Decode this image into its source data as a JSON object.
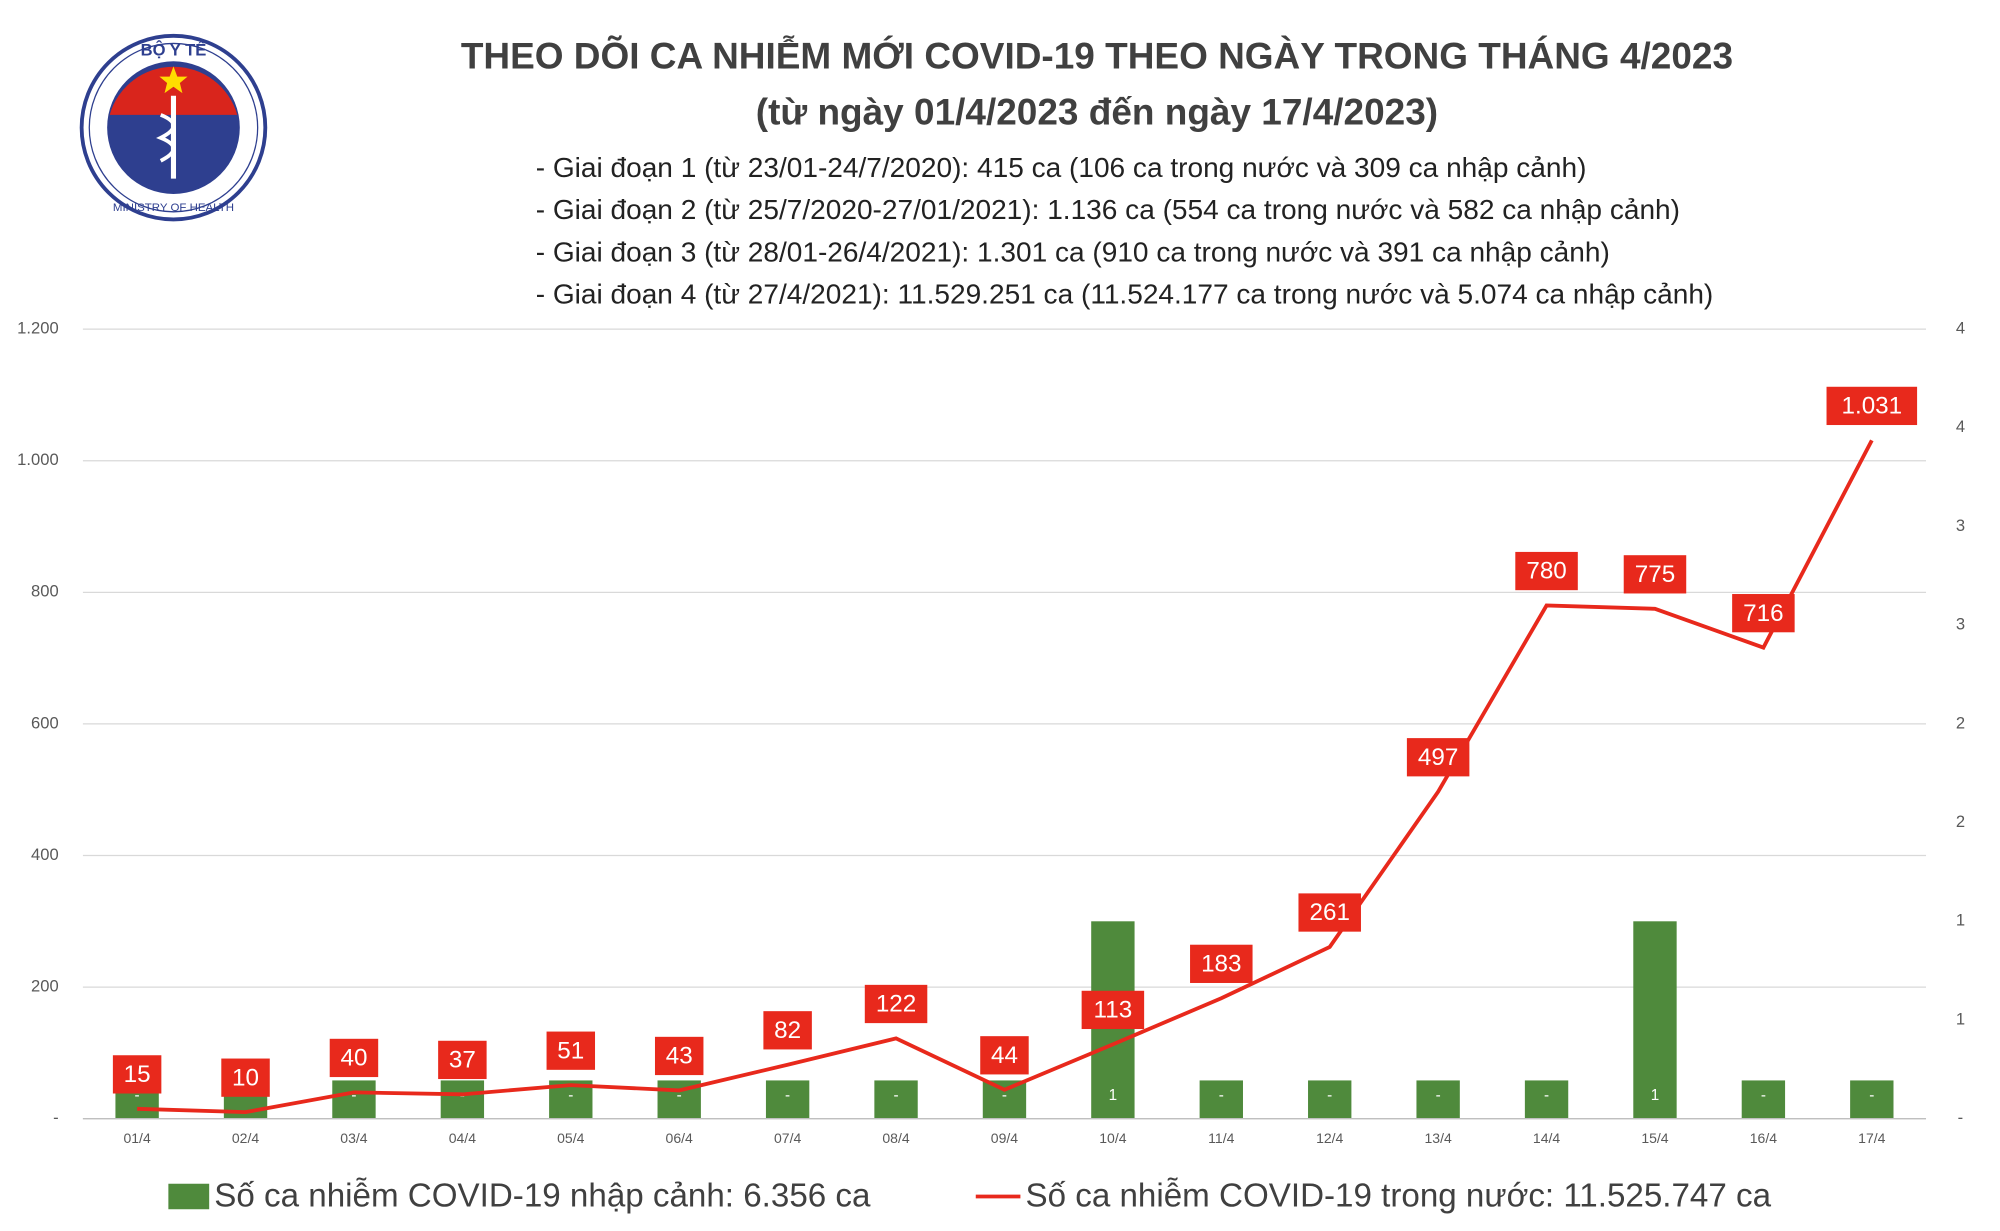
{
  "logo": {
    "top": "BỘ Y TẾ",
    "bottom": "MINISTRY OF HEALTH"
  },
  "chart_data": {
    "type": "bar-line",
    "title": "THEO DÕI CA NHIỄM MỚI COVID-19 THEO NGÀY TRONG THÁNG 4/2023",
    "subtitle": "(từ ngày 01/4/2023 đến ngày 17/4/2023)",
    "annotations": [
      "- Giai đoạn 1 (từ 23/01-24/7/2020): 415 ca (106 ca trong nước và 309 ca nhập cảnh)",
      "- Giai đoạn 2 (từ 25/7/2020-27/01/2021): 1.136 ca (554 ca trong nước và 582 ca nhập cảnh)",
      "- Giai đoạn 3 (từ 28/01-26/4/2021): 1.301 ca (910 ca trong nước và 391 ca nhập cảnh)",
      "- Giai đoạn 4 (từ 27/4/2021): 11.529.251 ca (11.524.177 ca trong nước và 5.074 ca nhập cảnh)"
    ],
    "categories": [
      "01/4",
      "02/4",
      "03/4",
      "04/4",
      "05/4",
      "06/4",
      "07/4",
      "08/4",
      "09/4",
      "10/4",
      "11/4",
      "12/4",
      "13/4",
      "14/4",
      "15/4",
      "16/4",
      "17/4"
    ],
    "series": [
      {
        "name": "Số ca nhiễm COVID-19 nhập cảnh: 6.356 ca",
        "color": "#4f8a3c",
        "type": "bar",
        "axis": "y2",
        "values": [
          0,
          0,
          0,
          0,
          0,
          0,
          0,
          0,
          0,
          1,
          0,
          0,
          0,
          0,
          1,
          0,
          0
        ],
        "value_labels": [
          "-",
          "-",
          "-",
          "-",
          "-",
          "-",
          "-",
          "-",
          "-",
          "1",
          "-",
          "-",
          "-",
          "-",
          "1",
          "-",
          "-"
        ]
      },
      {
        "name": "Số ca nhiễm COVID-19 trong nước: 11.525.747 ca",
        "color": "#e8291c",
        "type": "line",
        "values": [
          15,
          10,
          40,
          37,
          51,
          43,
          82,
          122,
          44,
          113,
          183,
          261,
          497,
          780,
          775,
          716,
          1031
        ],
        "value_labels": [
          "15",
          "10",
          "40",
          "37",
          "51",
          "43",
          "82",
          "122",
          "44",
          "113",
          "183",
          "261",
          "497",
          "780",
          "775",
          "716",
          "1.031"
        ]
      }
    ],
    "ylim": [
      0,
      1200
    ],
    "yticks": [
      {
        "value": 0,
        "label": "-"
      },
      200,
      400,
      600,
      800,
      {
        "value": 1000,
        "label": "1.000"
      },
      {
        "value": 1200,
        "label": "1.200"
      }
    ],
    "y2lim": [
      0,
      4
    ],
    "y2ticks": [
      {
        "value": 0,
        "label": "-"
      },
      {
        "value": 0.5,
        "label": "1"
      },
      {
        "value": 1,
        "label": "1"
      },
      {
        "value": 1.5,
        "label": "2"
      },
      {
        "value": 2,
        "label": "2"
      },
      {
        "value": 2.5,
        "label": "3"
      },
      {
        "value": 3,
        "label": "3"
      },
      {
        "value": 3.5,
        "label": "4"
      },
      {
        "value": 4,
        "label": "4"
      }
    ],
    "grid": true
  }
}
